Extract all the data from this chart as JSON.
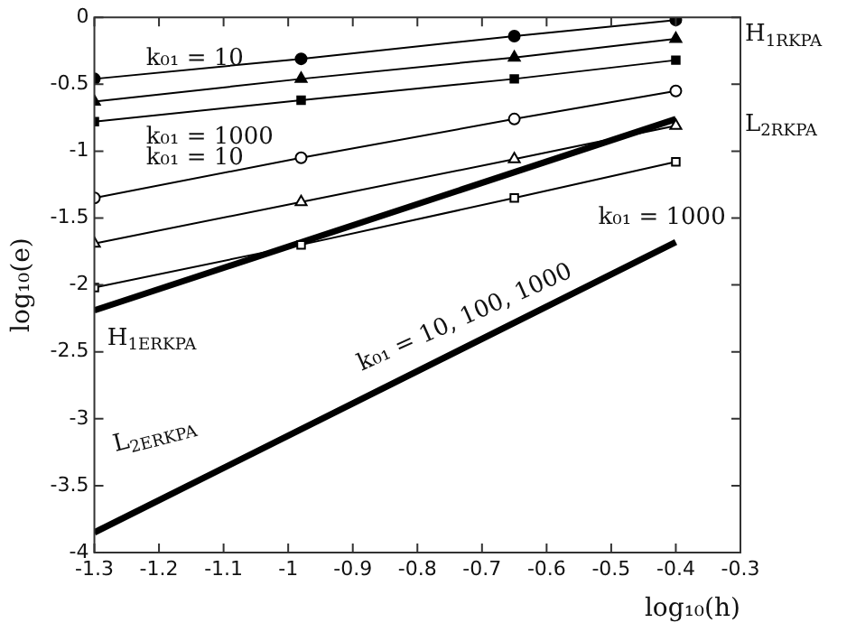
{
  "chart_data": {
    "type": "line",
    "xlabel": "log₁₀(h)",
    "ylabel": "log₁₀(e)",
    "xlim": [
      -1.3,
      -0.3
    ],
    "xticks": [
      -1.3,
      -1.2,
      -1.1,
      -1,
      -0.9,
      -0.8,
      -0.7,
      -0.6,
      -0.5,
      -0.4,
      -0.3
    ],
    "ylim": [
      -4,
      0
    ],
    "yticks": [
      -4,
      -3.5,
      -3,
      -2.5,
      -2,
      -1.5,
      -1,
      -0.5,
      0
    ],
    "grid": false,
    "legend": false,
    "line_style": "solid",
    "series": [
      {
        "color": "#000000",
        "marker": "circle",
        "x": [
          -1.3,
          -0.98,
          -0.65,
          -0.4
        ],
        "values": [
          -0.46,
          -0.31,
          -0.14,
          -0.02
        ]
      },
      {
        "color": "#000000",
        "marker": "triangle",
        "x": [
          -1.3,
          -0.98,
          -0.65,
          -0.4
        ],
        "values": [
          -0.63,
          -0.46,
          -0.3,
          -0.16
        ]
      },
      {
        "color": "#000000",
        "marker": "square",
        "x": [
          -1.3,
          -0.98,
          -0.65,
          -0.4
        ],
        "values": [
          -0.78,
          -0.62,
          -0.46,
          -0.32
        ]
      },
      {
        "color": "#000000",
        "marker": "circle",
        "x": [
          -1.3,
          -0.98,
          -0.65,
          -0.4
        ],
        "values": [
          -1.35,
          -1.05,
          -0.76,
          -0.55
        ]
      },
      {
        "color": "#000000",
        "marker": "triangle",
        "x": [
          -1.3,
          -0.98,
          -0.65,
          -0.4
        ],
        "values": [
          -1.69,
          -1.38,
          -1.06,
          -0.81
        ]
      },
      {
        "color": "#000000",
        "marker": "square",
        "x": [
          -1.3,
          -0.98,
          -0.65,
          -0.4
        ],
        "values": [
          -2.02,
          -1.7,
          -1.35,
          -1.08
        ]
      },
      {
        "color": "#000000",
        "marker": "none",
        "x": [
          -1.3,
          -0.4
        ],
        "values": [
          -2.19,
          -0.76
        ]
      },
      {
        "color": "#000000",
        "marker": "none",
        "x": [
          -1.3,
          -0.4
        ],
        "values": [
          -3.85,
          -1.68
        ]
      }
    ],
    "annotations": [
      "k₀₁ = 10",
      "k₀₁ = 1000",
      "k₀₁ = 10",
      "k₀₁ = 1000",
      "H$_{1RKPA}$",
      "L$_{2RKPA}$",
      "H$_{1ERKPA}$",
      "L$_{2ERKPA}$",
      "k₀₁ = 10, 100, 1000"
    ]
  }
}
